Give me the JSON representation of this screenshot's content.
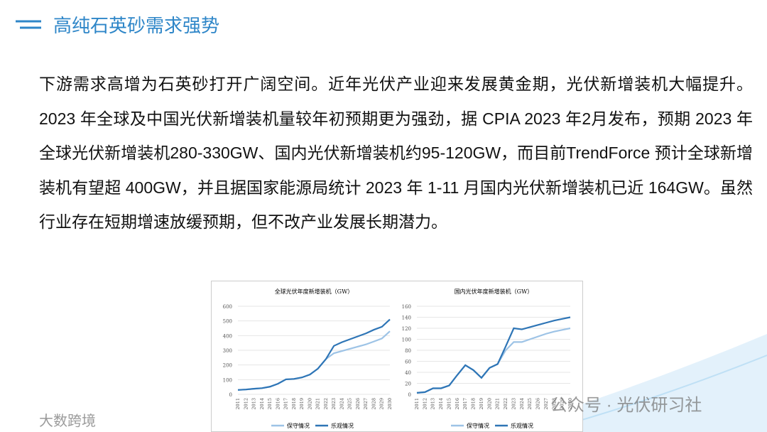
{
  "header": {
    "title": "高纯石英砂需求强势"
  },
  "paragraph": "下游需求高增为石英砂打开广阔空间。近年光伏产业迎来发展黄金期，光伏新增装机大幅提升。2023 年全球及中国光伏新增装机量较年初预期更为强劲，据 CPIA 2023 年2月发布，预期 2023 年全球光伏新增装机280-330GW、国内光伏新增装机约95-120GW，而目前TrendForce 预计全球新增装机有望超 400GW，并且据国家能源局统计 2023 年 1-11 月国内光伏新增装机已近 164GW。虽然行业存在短期增速放缓预期，但不改产业发展长期潜力。",
  "chart_data": [
    {
      "type": "line",
      "title": "全球光伏年度新增装机（GW）",
      "categories": [
        "2011",
        "2012",
        "2013",
        "2014",
        "2015",
        "2016",
        "2017",
        "2018",
        "2019",
        "2020",
        "2021",
        "2022",
        "2023",
        "2024",
        "2025",
        "2026",
        "2027",
        "2028",
        "2029",
        "2030"
      ],
      "series": [
        {
          "name": "保守情况",
          "color": "#9dc3e6",
          "values": [
            30,
            33,
            38,
            42,
            52,
            72,
            102,
            105,
            115,
            135,
            175,
            240,
            280,
            295,
            310,
            325,
            340,
            360,
            380,
            430
          ]
        },
        {
          "name": "乐观情况",
          "color": "#2e75b6",
          "values": [
            30,
            33,
            38,
            42,
            52,
            72,
            102,
            105,
            115,
            135,
            175,
            240,
            330,
            355,
            375,
            395,
            415,
            440,
            460,
            510
          ]
        }
      ],
      "ylim": [
        0,
        600
      ],
      "yticks": [
        0,
        100,
        200,
        300,
        400,
        500,
        600
      ],
      "grid": true
    },
    {
      "type": "line",
      "title": "国内光伏年度新增装机（GW）",
      "categories": [
        "2011",
        "2012",
        "2013",
        "2014",
        "2015",
        "2016",
        "2017",
        "2018",
        "2019",
        "2020",
        "2021",
        "2022",
        "2023",
        "2024",
        "2025",
        "2026",
        "2027",
        "2028",
        "2029",
        "2030"
      ],
      "series": [
        {
          "name": "保守情况",
          "color": "#9dc3e6",
          "values": [
            2.7,
            4,
            11,
            11,
            16,
            35,
            53,
            44,
            30,
            48,
            55,
            80,
            95,
            95,
            100,
            105,
            110,
            114,
            117,
            120
          ]
        },
        {
          "name": "乐观情况",
          "color": "#2e75b6",
          "values": [
            2.7,
            4,
            11,
            11,
            16,
            35,
            53,
            44,
            30,
            48,
            55,
            87,
            120,
            118,
            122,
            126,
            130,
            134,
            137,
            140
          ]
        }
      ],
      "ylim": [
        0,
        160
      ],
      "yticks": [
        0,
        20,
        40,
        60,
        80,
        100,
        120,
        140,
        160
      ],
      "grid": true
    }
  ],
  "watermarks": [
    "公众号 · 光伏研习社",
    "大数跨境"
  ]
}
